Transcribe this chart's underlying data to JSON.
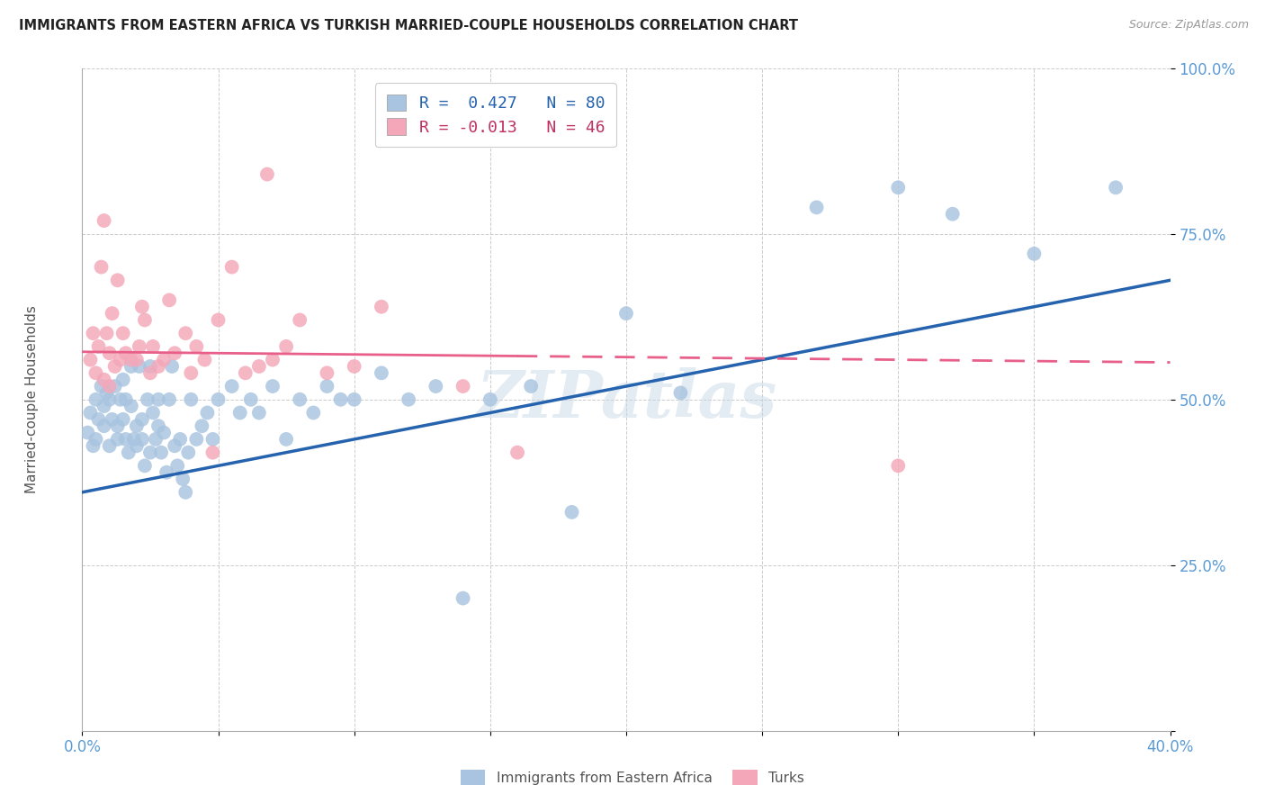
{
  "title": "IMMIGRANTS FROM EASTERN AFRICA VS TURKISH MARRIED-COUPLE HOUSEHOLDS CORRELATION CHART",
  "source": "Source: ZipAtlas.com",
  "ylabel": "Married-couple Households",
  "xlim": [
    0.0,
    0.4
  ],
  "ylim": [
    0.0,
    1.0
  ],
  "blue_R": 0.427,
  "blue_N": 80,
  "pink_R": -0.013,
  "pink_N": 46,
  "blue_color": "#a8c4e0",
  "pink_color": "#f4a7b9",
  "blue_line_color": "#2563ae",
  "pink_line_color": "#e8608a",
  "watermark": "ZIPatlas",
  "blue_scatter_x": [
    0.002,
    0.003,
    0.004,
    0.005,
    0.005,
    0.006,
    0.007,
    0.008,
    0.008,
    0.009,
    0.01,
    0.01,
    0.011,
    0.012,
    0.013,
    0.013,
    0.014,
    0.015,
    0.015,
    0.016,
    0.016,
    0.017,
    0.018,
    0.018,
    0.019,
    0.02,
    0.02,
    0.021,
    0.022,
    0.022,
    0.023,
    0.024,
    0.025,
    0.025,
    0.026,
    0.027,
    0.028,
    0.028,
    0.029,
    0.03,
    0.031,
    0.032,
    0.033,
    0.034,
    0.035,
    0.036,
    0.037,
    0.038,
    0.039,
    0.04,
    0.042,
    0.044,
    0.046,
    0.048,
    0.05,
    0.055,
    0.058,
    0.062,
    0.065,
    0.07,
    0.075,
    0.08,
    0.085,
    0.09,
    0.095,
    0.1,
    0.11,
    0.12,
    0.13,
    0.14,
    0.15,
    0.165,
    0.18,
    0.2,
    0.22,
    0.27,
    0.3,
    0.32,
    0.35,
    0.38
  ],
  "blue_scatter_y": [
    0.45,
    0.48,
    0.43,
    0.5,
    0.44,
    0.47,
    0.52,
    0.46,
    0.49,
    0.51,
    0.43,
    0.5,
    0.47,
    0.52,
    0.44,
    0.46,
    0.5,
    0.53,
    0.47,
    0.44,
    0.5,
    0.42,
    0.49,
    0.55,
    0.44,
    0.43,
    0.46,
    0.55,
    0.44,
    0.47,
    0.4,
    0.5,
    0.42,
    0.55,
    0.48,
    0.44,
    0.5,
    0.46,
    0.42,
    0.45,
    0.39,
    0.5,
    0.55,
    0.43,
    0.4,
    0.44,
    0.38,
    0.36,
    0.42,
    0.5,
    0.44,
    0.46,
    0.48,
    0.44,
    0.5,
    0.52,
    0.48,
    0.5,
    0.48,
    0.52,
    0.44,
    0.5,
    0.48,
    0.52,
    0.5,
    0.5,
    0.54,
    0.5,
    0.52,
    0.2,
    0.5,
    0.52,
    0.33,
    0.63,
    0.51,
    0.79,
    0.82,
    0.78,
    0.72,
    0.82
  ],
  "pink_scatter_x": [
    0.003,
    0.004,
    0.005,
    0.006,
    0.007,
    0.008,
    0.008,
    0.009,
    0.01,
    0.01,
    0.011,
    0.012,
    0.013,
    0.014,
    0.015,
    0.016,
    0.018,
    0.02,
    0.021,
    0.022,
    0.023,
    0.025,
    0.026,
    0.028,
    0.03,
    0.032,
    0.034,
    0.038,
    0.04,
    0.042,
    0.045,
    0.048,
    0.05,
    0.055,
    0.06,
    0.065,
    0.068,
    0.07,
    0.075,
    0.08,
    0.09,
    0.1,
    0.11,
    0.14,
    0.16,
    0.3
  ],
  "pink_scatter_y": [
    0.56,
    0.6,
    0.54,
    0.58,
    0.7,
    0.53,
    0.77,
    0.6,
    0.57,
    0.52,
    0.63,
    0.55,
    0.68,
    0.56,
    0.6,
    0.57,
    0.56,
    0.56,
    0.58,
    0.64,
    0.62,
    0.54,
    0.58,
    0.55,
    0.56,
    0.65,
    0.57,
    0.6,
    0.54,
    0.58,
    0.56,
    0.42,
    0.62,
    0.7,
    0.54,
    0.55,
    0.84,
    0.56,
    0.58,
    0.62,
    0.54,
    0.55,
    0.64,
    0.52,
    0.42,
    0.4
  ],
  "blue_line_x0": 0.0,
  "blue_line_y0": 0.36,
  "blue_line_x1": 0.4,
  "blue_line_y1": 0.68,
  "pink_line_x0": 0.0,
  "pink_line_y0": 0.572,
  "pink_line_x1": 0.4,
  "pink_line_y1": 0.556
}
